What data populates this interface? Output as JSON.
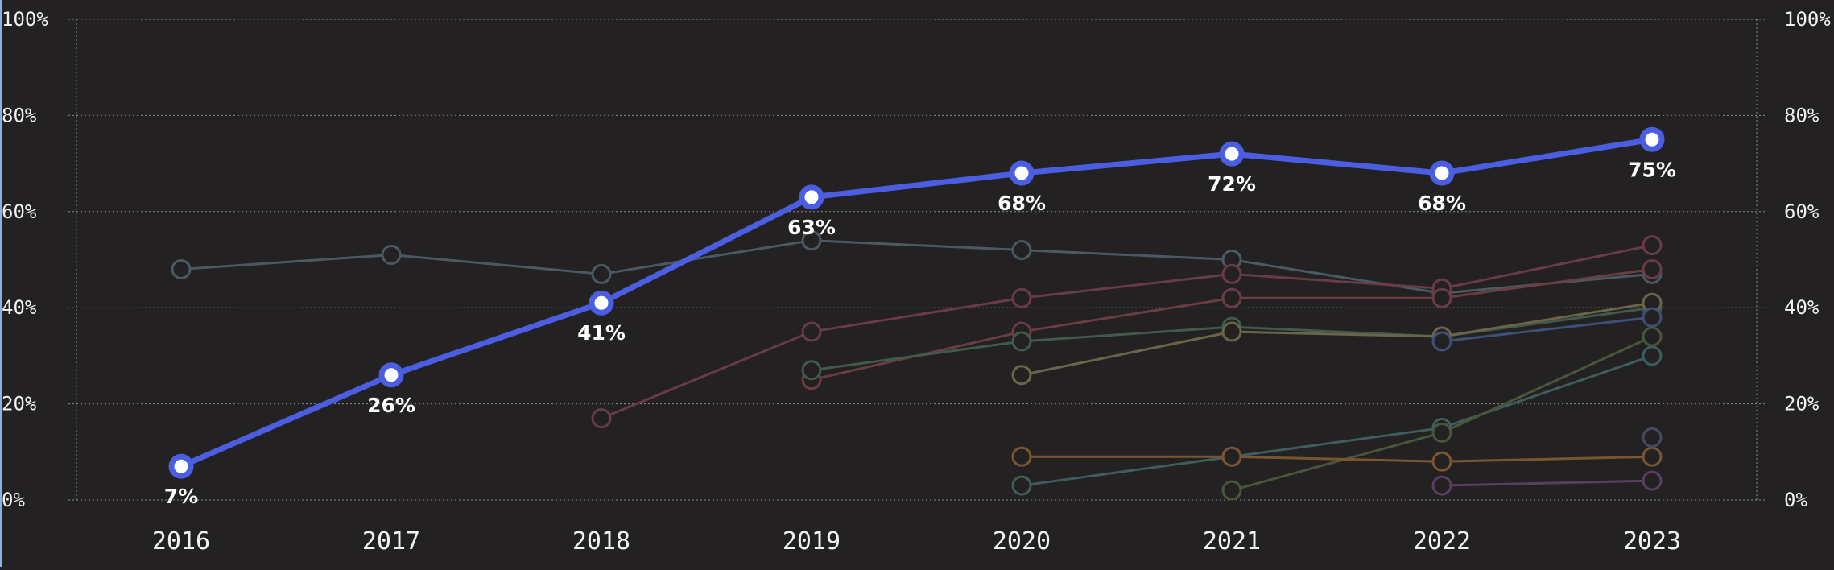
{
  "chart_data": {
    "type": "line",
    "x": [
      "2016",
      "2017",
      "2018",
      "2019",
      "2020",
      "2021",
      "2022",
      "2023"
    ],
    "ylim": [
      0,
      100
    ],
    "yticks": [
      "0%",
      "20%",
      "40%",
      "60%",
      "80%",
      "100%"
    ],
    "y_axis_right": true,
    "grid": true,
    "highlight_series": {
      "color": "#4b5de0",
      "values": [
        7,
        26,
        41,
        63,
        68,
        72,
        68,
        75
      ],
      "labels": [
        "7%",
        "26%",
        "41%",
        "63%",
        "68%",
        "72%",
        "68%",
        "75%"
      ]
    },
    "series": [
      {
        "color": "#4a5a62",
        "values": [
          48,
          51,
          47,
          54,
          52,
          50,
          43,
          47
        ]
      },
      {
        "color": "#6a3a46",
        "values": [
          null,
          null,
          17,
          35,
          42,
          47,
          44,
          53
        ]
      },
      {
        "color": "#6b3c44",
        "values": [
          null,
          null,
          null,
          25,
          35,
          42,
          42,
          48
        ]
      },
      {
        "color": "#405a4c",
        "values": [
          null,
          null,
          null,
          27,
          33,
          36,
          34,
          40
        ]
      },
      {
        "color": "#6a6448",
        "values": [
          null,
          null,
          null,
          null,
          26,
          35,
          34,
          41
        ]
      },
      {
        "color": "#3f4f78",
        "values": [
          null,
          null,
          null,
          null,
          null,
          null,
          33,
          38
        ]
      },
      {
        "color": "#3e5d5c",
        "values": [
          null,
          null,
          null,
          null,
          3,
          9,
          15,
          30
        ]
      },
      {
        "color": "#48563c",
        "values": [
          null,
          null,
          null,
          null,
          null,
          2,
          14,
          34
        ]
      },
      {
        "color": "#7a5530",
        "values": [
          null,
          null,
          null,
          null,
          9,
          9,
          8,
          9
        ]
      },
      {
        "color": "#5a3e62",
        "values": [
          null,
          null,
          null,
          null,
          null,
          null,
          3,
          4
        ]
      },
      {
        "color": "#454a62",
        "values": [
          null,
          null,
          null,
          null,
          null,
          null,
          null,
          13
        ]
      }
    ]
  }
}
